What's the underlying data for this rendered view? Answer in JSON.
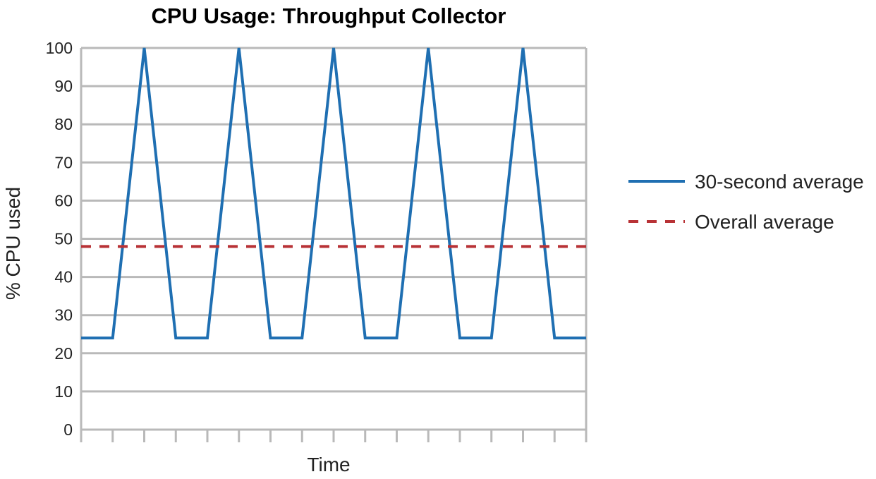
{
  "chart_data": {
    "type": "line",
    "title": "CPU Usage: Throughput Collector",
    "xlabel": "Time",
    "ylabel": "% CPU used",
    "ylim": [
      0,
      100
    ],
    "yticks": [
      0,
      10,
      20,
      30,
      40,
      50,
      60,
      70,
      80,
      90,
      100
    ],
    "x_tick_count": 17,
    "grid": true,
    "legend_position": "right",
    "series": [
      {
        "name": "30-second average",
        "color": "#1f6fb2",
        "style": "solid",
        "x": [
          0,
          1,
          2,
          3,
          4,
          5,
          6,
          7,
          8,
          9,
          10,
          11,
          12,
          13,
          14,
          15,
          16
        ],
        "values": [
          24,
          24,
          100,
          24,
          24,
          100,
          24,
          24,
          100,
          24,
          24,
          100,
          24,
          24,
          100,
          24,
          24
        ]
      },
      {
        "name": "Overall average",
        "color": "#b83236",
        "style": "dashed",
        "x": [
          0,
          16
        ],
        "values": [
          48,
          48
        ]
      }
    ]
  }
}
